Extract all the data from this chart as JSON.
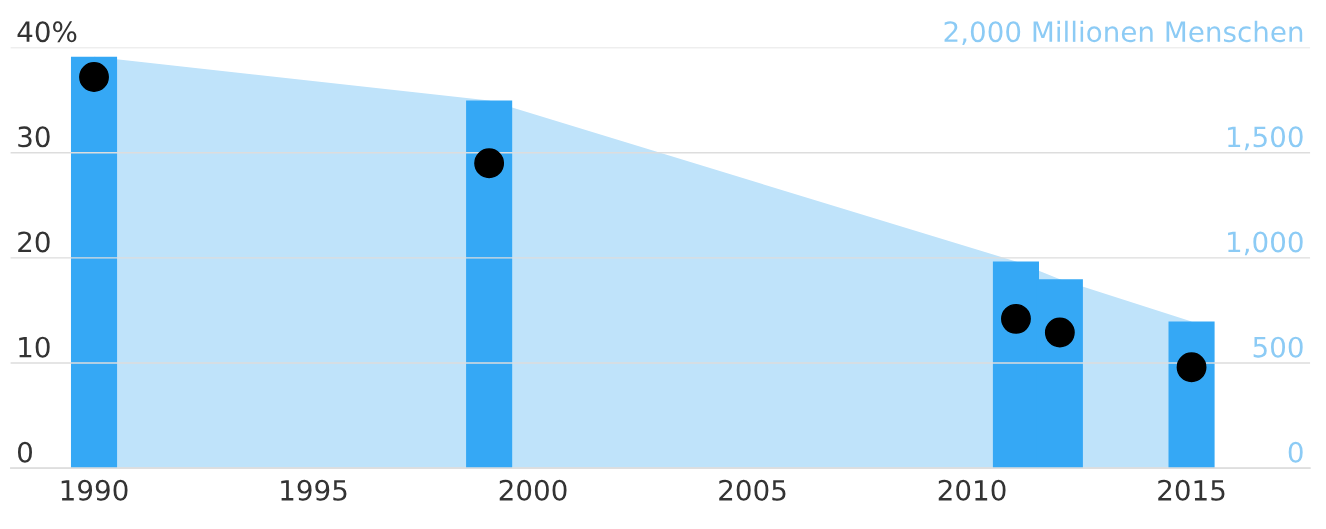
{
  "chart_data": {
    "type": "scatter",
    "x": [
      1990,
      1999,
      2011,
      2012,
      2015
    ],
    "series": [
      {
        "type": "area",
        "axis": "y2",
        "color": "#bfe3fa",
        "values": [
          1957,
          1748,
          983,
          898,
          698
        ]
      },
      {
        "type": "bar",
        "axis": "y2",
        "color": "#35a8f5",
        "values": [
          1957,
          1748,
          983,
          898,
          698
        ]
      },
      {
        "color": "#000000",
        "marker": "circle",
        "values": [
          37.2,
          29.0,
          14.2,
          12.9,
          9.6
        ]
      }
    ],
    "xlim": [
      1988.1,
      2017.7
    ],
    "xticks": [
      1990,
      1995,
      2000,
      2005,
      2010,
      2015
    ],
    "ylim": [
      0,
      40
    ],
    "yticks": [
      0,
      10,
      20,
      30,
      {
        "value": 40,
        "label": "40%"
      }
    ],
    "y2lim": [
      0,
      2000
    ],
    "y2ticks": [
      0,
      500,
      {
        "value": 1000,
        "label": "1,000"
      },
      {
        "value": 1500,
        "label": "1,500"
      },
      {
        "value": 2000,
        "label": "2,000 Millionen Menschen"
      }
    ],
    "grid": "y"
  }
}
